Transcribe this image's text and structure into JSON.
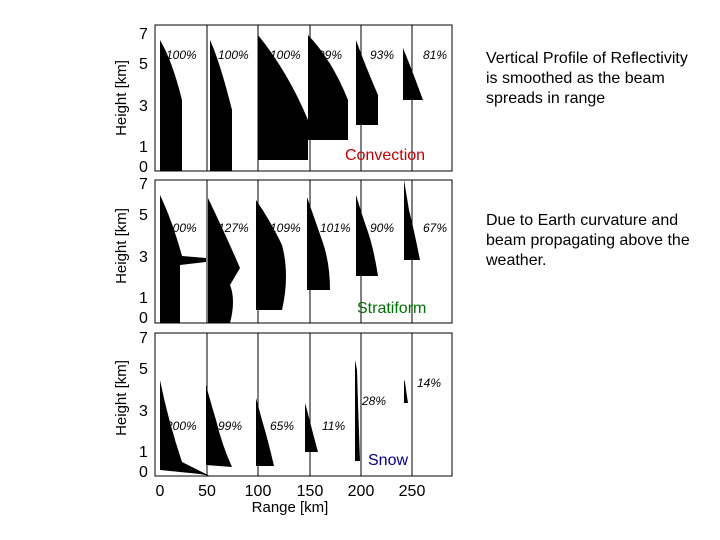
{
  "figure": {
    "y_label": "Height [km]",
    "x_label": "Range [km]",
    "y_ticks": [
      "7",
      "5",
      "3",
      "1",
      "0"
    ],
    "x_ticks": [
      "0",
      "50",
      "100",
      "150",
      "200",
      "250"
    ],
    "panels": [
      {
        "name": "Convection",
        "color": "#c00000",
        "percents": [
          "100%",
          "100%",
          "100%",
          "99%",
          "93%",
          "81%"
        ]
      },
      {
        "name": "Stratiform",
        "color": "#007000",
        "percents": [
          "200%",
          "127%",
          "109%",
          "101%",
          "90%",
          "67%"
        ]
      },
      {
        "name": "Snow",
        "color": "#000080",
        "percents": [
          "200%",
          "99%",
          "65%",
          "11%",
          "28%",
          "14%"
        ]
      }
    ]
  },
  "notes": {
    "note1": "Vertical Profile of Reflectivity is smoothed as the beam spreads in range",
    "note2": "Due to Earth curvature and beam propagating above the weather."
  }
}
